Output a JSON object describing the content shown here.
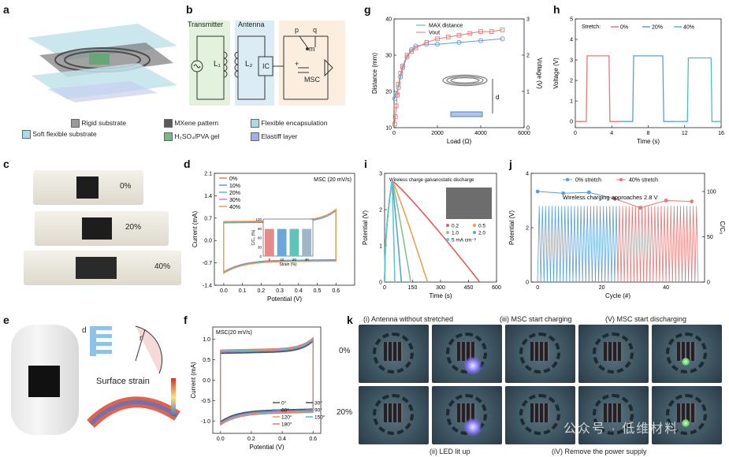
{
  "panels": {
    "a": "a",
    "b": "b",
    "c": "c",
    "d": "d",
    "e": "e",
    "f": "f",
    "g": "g",
    "h": "h",
    "i": "i",
    "j": "j",
    "k": "k"
  },
  "legend_a": {
    "rigid": "Rigid substrate",
    "mxene": "MXene pattern",
    "flex_encap": "Flexible encapsulation",
    "soft": "Soft flexible substrate",
    "gel": "H₂SO₄/PVA gel",
    "elastiff": "Elastiff layer",
    "colors": {
      "rigid": "#9a9a9a",
      "mxene": "#5a5a5a",
      "flex_encap": "#a8dde4",
      "soft": "#a8dde4",
      "gel": "#6fbf80",
      "elastiff": "#9fb0e8"
    }
  },
  "circuit_b": {
    "transmitter": "Transmitter",
    "antenna": "Antenna",
    "l1": "L₁",
    "l2": "L₂",
    "ic": "IC",
    "msc": "MSC",
    "p": "p",
    "q": "q",
    "m": "m",
    "plus": "+"
  },
  "panel_c": {
    "labels": [
      "0%",
      "20%",
      "40%"
    ]
  },
  "panel_e": {
    "d_label": "d",
    "r_label": "r",
    "surface_strain": "Surface strain"
  },
  "panel_k": {
    "titles": [
      "(i)  Antenna without stretched",
      "(iii) MSC start charging",
      "(V) MSC start discharging"
    ],
    "bottom": [
      "(ii) LED lit up",
      "(iV) Remove the power supply"
    ],
    "rows": [
      "0%",
      "20%"
    ],
    "watermark": "公众号 · 低维材料"
  },
  "chart_data": [
    {
      "id": "d",
      "type": "line",
      "title": "MSC (20 mV/s)",
      "xlabel": "Potential (V)",
      "ylabel": "Current (mA)",
      "xlim": [
        -0.05,
        0.7
      ],
      "ylim": [
        -1.4,
        2.1
      ],
      "xticks": [
        "0.0",
        "0.1",
        "0.2",
        "0.3",
        "0.4",
        "0.5",
        "0.6"
      ],
      "yticks": [
        "-1.4",
        "-0.7",
        "0.0",
        "0.7",
        "1.4",
        "2.1"
      ],
      "series": [
        {
          "name": "0%",
          "color": "#e57878"
        },
        {
          "name": "10%",
          "color": "#5a9fd6"
        },
        {
          "name": "20%",
          "color": "#4dbfb6"
        },
        {
          "name": "30%",
          "color": "#d97fb0"
        },
        {
          "name": "40%",
          "color": "#e8a050"
        }
      ],
      "inset": {
        "type": "bar",
        "categories": [
          "0",
          "10",
          "20",
          "40"
        ],
        "values": [
          88,
          88,
          88,
          88
        ],
        "ylabel": "C/C₀ (%)",
        "xlabel": "Strain (%)",
        "yticks": [
          "0",
          "30",
          "60",
          "90",
          "120"
        ],
        "colors": [
          "#e58a8a",
          "#6aa8d8",
          "#5fc3b8",
          "#9fb5c8"
        ]
      }
    },
    {
      "id": "f",
      "type": "line",
      "title": "MSC(20 mV/s)",
      "xlabel": "Potential (V)",
      "ylabel": "Current (mA)",
      "xticks": [
        "0.0",
        "0.2",
        "0.4",
        "0.6"
      ],
      "yticks": [
        "-1.0",
        "-0.5",
        "0.0",
        "0.5",
        "1.0"
      ],
      "series": [
        {
          "name": "0°",
          "color": "#555555"
        },
        {
          "name": "30°",
          "color": "#444466"
        },
        {
          "name": "60°",
          "color": "#5a9fd6"
        },
        {
          "name": "90°",
          "color": "#9a6fd0"
        },
        {
          "name": "120°",
          "color": "#e8a050"
        },
        {
          "name": "150°",
          "color": "#4dbfb6"
        },
        {
          "name": "180°",
          "color": "#e57878"
        }
      ]
    },
    {
      "id": "g",
      "type": "line",
      "xlabel": "Load (Ω)",
      "ylabel": "Distance (mm)",
      "y2label": "Voltage (V)",
      "xlim": [
        0,
        6000
      ],
      "ylim": [
        10,
        40
      ],
      "y2lim": [
        0,
        3
      ],
      "xticks": [
        "0",
        "2000",
        "4000",
        "6000"
      ],
      "yticks": [
        "10",
        "20",
        "30",
        "40"
      ],
      "y2ticks": [
        "0",
        "1",
        "2",
        "3"
      ],
      "d_label": "d",
      "series": [
        {
          "name": "MAX distance",
          "color": "#5a9fd6",
          "marker": "circle",
          "x": [
            30,
            100,
            200,
            300,
            400,
            600,
            800,
            1000,
            1500,
            2000,
            3000,
            4000,
            5000
          ],
          "y": [
            18,
            19.5,
            21,
            24,
            26.5,
            29.5,
            31.5,
            32.5,
            33,
            33,
            33.5,
            34,
            34.5
          ]
        },
        {
          "name": "Vout",
          "color": "#e57878",
          "marker": "square",
          "x": [
            30,
            60,
            100,
            150,
            200,
            300,
            400,
            600,
            800,
            1000,
            1500,
            2000,
            2500,
            3000,
            3500,
            4000,
            4500,
            5000
          ],
          "y": [
            0.1,
            0.3,
            0.6,
            0.9,
            1.2,
            1.5,
            1.7,
            2.0,
            2.1,
            2.2,
            2.35,
            2.45,
            2.5,
            2.55,
            2.6,
            2.65,
            2.65,
            2.7
          ]
        }
      ]
    },
    {
      "id": "h",
      "type": "line",
      "xlabel": "Time (s)",
      "ylabel": "Voltage (V)",
      "xlim": [
        0,
        16
      ],
      "ylim": [
        -0.3,
        5
      ],
      "xticks": [
        "0",
        "4",
        "8",
        "12",
        "16"
      ],
      "yticks": [
        "0",
        "1",
        "2",
        "3",
        "4",
        "5"
      ],
      "legend_title": "Stretch:",
      "series": [
        {
          "name": "0%",
          "color": "#e57878",
          "x": [
            0,
            1.2,
            1.3,
            3.7,
            3.8,
            5
          ],
          "y": [
            0,
            0,
            3.2,
            3.2,
            0,
            0
          ]
        },
        {
          "name": "20%",
          "color": "#5a9fd6",
          "x": [
            5,
            6.3,
            6.4,
            9.6,
            9.7,
            11
          ],
          "y": [
            0,
            0,
            3.2,
            3.2,
            0,
            0
          ]
        },
        {
          "name": "40%",
          "color": "#4dbfb6",
          "x": [
            11,
            12.3,
            12.4,
            14.9,
            15,
            16
          ],
          "y": [
            0,
            0,
            3.1,
            3.1,
            0,
            0
          ]
        }
      ]
    },
    {
      "id": "i",
      "type": "line",
      "title": "Wireless charge  galvanostatic discharge",
      "xlabel": "Time (s)",
      "ylabel": "Potential (V)",
      "xlim": [
        0,
        600
      ],
      "ylim": [
        0,
        3
      ],
      "xticks": [
        "0",
        "150",
        "300",
        "450",
        "600"
      ],
      "yticks": [
        "0",
        "1",
        "2",
        "3"
      ],
      "legend_unit": "5 mA cm⁻²",
      "series": [
        {
          "name": "0.2",
          "color": "#e55a5a",
          "discharge_end": 510
        },
        {
          "name": "0.5",
          "color": "#e8a050",
          "discharge_end": 230
        },
        {
          "name": "1.0",
          "color": "#7ec98a",
          "discharge_end": 140
        },
        {
          "name": "2.0",
          "color": "#5a9fd6",
          "discharge_end": 90
        },
        {
          "name": "5 mA cm⁻²",
          "color": "#5ac8d6",
          "discharge_end": 55
        }
      ]
    },
    {
      "id": "j",
      "type": "line",
      "xlabel": "Cycle (#)",
      "ylabel": "Potential (V)",
      "y2label": "C/C₀",
      "xlim": [
        -2,
        52
      ],
      "ylim": [
        0,
        4
      ],
      "y2lim": [
        0,
        120
      ],
      "xticks": [
        "0",
        "20",
        "40"
      ],
      "yticks": [
        "0",
        "2",
        "4"
      ],
      "y2ticks": [
        "0",
        "50",
        "100"
      ],
      "annotation": "Wireless charging approaches 2.8 V",
      "series": [
        {
          "name": "0% stretch",
          "color": "#5a9fd6",
          "x": [
            0,
            8,
            16,
            24
          ],
          "y": [
            100,
            98,
            99,
            92
          ]
        },
        {
          "name": "40% stretch",
          "color": "#e57878",
          "x": [
            24,
            32,
            40,
            48
          ],
          "y": [
            92,
            82,
            90,
            89
          ]
        }
      ],
      "wave": {
        "cycles_blue": 25,
        "cycles_red": 25,
        "peak": 2.8
      }
    }
  ]
}
